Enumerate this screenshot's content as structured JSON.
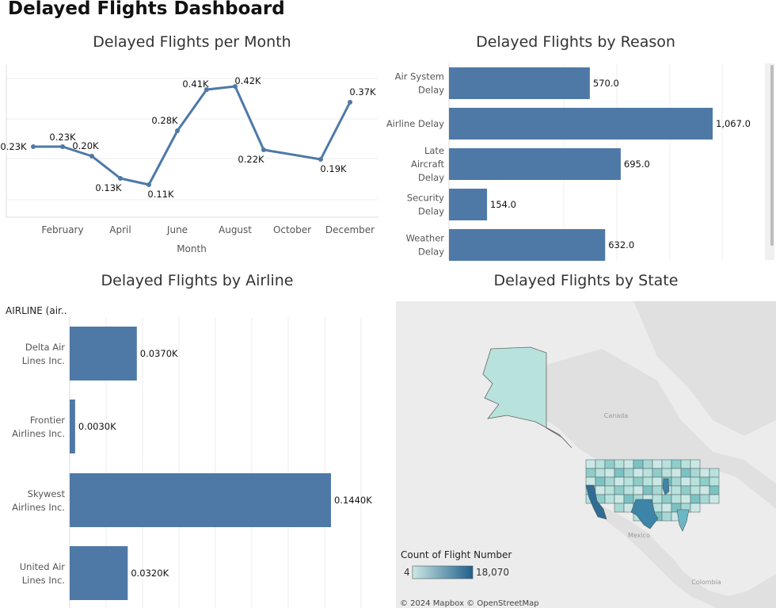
{
  "dashboard": {
    "title": "Delayed Flights Dashboard"
  },
  "colors": {
    "bar": "#4e79a7",
    "line": "#4e79a7",
    "grid": "#eeeeee",
    "map_low": "#cbe8e5",
    "map_high": "#1f5f8b",
    "map_land": "#dcdcdc",
    "map_water": "#ececec"
  },
  "chart_data": [
    {
      "id": "per-month",
      "type": "line",
      "title": "Delayed Flights per Month",
      "xlabel": "Month",
      "ylabel": "",
      "x_ticks": [
        "February",
        "April",
        "June",
        "August",
        "October",
        "December"
      ],
      "x": [
        "January",
        "February",
        "March",
        "April",
        "May",
        "June",
        "July",
        "August",
        "September",
        "October",
        "November",
        "December"
      ],
      "points": [
        {
          "x": "January",
          "y": 0.23,
          "label": "0.23K"
        },
        {
          "x": "February",
          "y": 0.23,
          "label": "0.23K"
        },
        {
          "x": "March",
          "y": 0.2,
          "label": "0.20K"
        },
        {
          "x": "April",
          "y": 0.13,
          "label": "0.13K"
        },
        {
          "x": "May",
          "y": 0.11,
          "label": "0.11K"
        },
        {
          "x": "June",
          "y": 0.28,
          "label": "0.28K"
        },
        {
          "x": "July",
          "y": 0.41,
          "label": "0.41K"
        },
        {
          "x": "August",
          "y": 0.42,
          "label": "0.42K"
        },
        {
          "x": "September",
          "y": 0.22,
          "label": "0.22K"
        },
        {
          "x": "November",
          "y": 0.19,
          "label": "0.19K"
        },
        {
          "x": "December",
          "y": 0.37,
          "label": "0.37K"
        }
      ],
      "ylim": [
        0,
        0.5
      ],
      "grid": true
    },
    {
      "id": "by-reason",
      "type": "bar",
      "orientation": "horizontal",
      "title": "Delayed Flights by Reason",
      "categories": [
        "Air System Delay",
        "Airline Delay",
        "Late Aircraft Delay",
        "Security Delay",
        "Weather Delay"
      ],
      "values": [
        570,
        1067,
        695,
        154,
        632
      ],
      "labels": [
        "570.0",
        "1,067.0",
        "695.0",
        "154.0",
        "632.0"
      ],
      "xlim": [
        0,
        1100
      ],
      "grid": true
    },
    {
      "id": "by-airline",
      "type": "bar",
      "orientation": "horizontal",
      "title": "Delayed Flights by Airline",
      "axis_header": "AIRLINE (air..",
      "categories": [
        "Delta Air Lines Inc.",
        "Frontier Airlines Inc.",
        "Skywest Airlines Inc.",
        "United Air Lines Inc."
      ],
      "values": [
        0.037,
        0.003,
        0.144,
        0.032
      ],
      "labels": [
        "0.0370K",
        "0.0030K",
        "0.1440K",
        "0.0320K"
      ],
      "xlim": [
        0,
        0.16
      ],
      "grid": true
    },
    {
      "id": "by-state",
      "type": "map",
      "title": "Delayed Flights by State",
      "legend": {
        "title": "Count of Flight Number",
        "min": "4",
        "max": "18,070"
      },
      "place_labels": [
        "Canada",
        "Mexico",
        "Colombia"
      ],
      "attribution": "© 2024 Mapbox © OpenStreetMap"
    }
  ]
}
